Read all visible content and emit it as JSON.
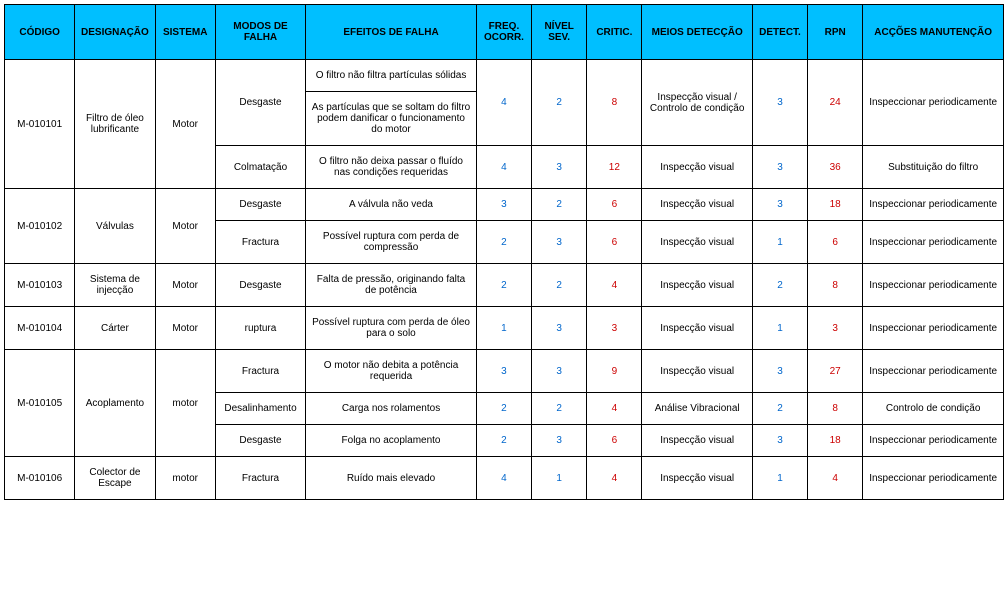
{
  "header_bg": "#00bfff",
  "columns": [
    "CÓDIGO",
    "DESIGNAÇÃO",
    "SISTEMA",
    "MODOS DE FALHA",
    "EFEITOS DE FALHA",
    "FREQ. OCORR.",
    "NÍVEL SEV.",
    "CRITIC.",
    "MEIOS DETECÇÃO",
    "DETECT.",
    "RPN",
    "ACÇÕES MANUTENÇÃO"
  ],
  "rows": [
    {
      "codigo": "M-010101",
      "desig": "Filtro de óleo lubrificante",
      "sist": "Motor",
      "modo": "Desgaste",
      "efeito": "O filtro não filtra partículas sólidas",
      "freq": "4",
      "nivel": "2",
      "critic": "8",
      "meios": "Inspecção visual / Controlo de condição",
      "detect": "3",
      "rpn": "24",
      "accao": "Inspeccionar periodicamente",
      "rs_codigo": 3,
      "rs_desig": 3,
      "rs_sist": 3,
      "rs_modo": 2,
      "rs_freq": 2,
      "rs_nivel": 2,
      "rs_critic": 2,
      "rs_meios": 2,
      "rs_detect": 2,
      "rs_rpn": 2,
      "rs_accao": 2
    },
    {
      "efeito": "As partículas que se soltam do filtro podem danificar o funcionamento do motor"
    },
    {
      "modo": "Colmatação",
      "efeito": "O filtro não deixa passar o fluído nas condições requeridas",
      "freq": "4",
      "nivel": "3",
      "critic": "12",
      "meios": "Inspecção visual",
      "detect": "3",
      "rpn": "36",
      "accao": "Substituição do filtro"
    },
    {
      "codigo": "M-010102",
      "desig": "Válvulas",
      "sist": "Motor",
      "modo": "Desgaste",
      "efeito": "A válvula não veda",
      "freq": "3",
      "nivel": "2",
      "critic": "6",
      "meios": "Inspecção visual",
      "detect": "3",
      "rpn": "18",
      "accao": "Inspeccionar periodicamente",
      "rs_codigo": 2,
      "rs_desig": 2,
      "rs_sist": 2
    },
    {
      "modo": "Fractura",
      "efeito": "Possível ruptura com perda de compressão",
      "freq": "2",
      "nivel": "3",
      "critic": "6",
      "meios": "Inspecção visual",
      "detect": "1",
      "rpn": "6",
      "accao": "Inspeccionar periodicamente"
    },
    {
      "codigo": "M-010103",
      "desig": "Sistema de injecção",
      "sist": "Motor",
      "modo": "Desgaste",
      "efeito": "Falta de pressão, originando falta de potência",
      "freq": "2",
      "nivel": "2",
      "critic": "4",
      "meios": "Inspecção visual",
      "detect": "2",
      "rpn": "8",
      "accao": "Inspeccionar periodicamente"
    },
    {
      "codigo": "M-010104",
      "desig": "Cárter",
      "sist": "Motor",
      "modo": "ruptura",
      "efeito": "Possível ruptura com perda de óleo para o solo",
      "freq": "1",
      "nivel": "3",
      "critic": "3",
      "meios": "Inspecção visual",
      "detect": "1",
      "rpn": "3",
      "accao": "Inspeccionar periodicamente"
    },
    {
      "codigo": "M-010105",
      "desig": "Acoplamento",
      "sist": "motor",
      "modo": "Fractura",
      "efeito": "O motor não debita a potência requerida",
      "freq": "3",
      "nivel": "3",
      "critic": "9",
      "meios": "Inspecção visual",
      "detect": "3",
      "rpn": "27",
      "accao": "Inspeccionar periodicamente",
      "rs_codigo": 3,
      "rs_desig": 3,
      "rs_sist": 3
    },
    {
      "modo": "Desalinhamento",
      "efeito": "Carga nos rolamentos",
      "freq": "2",
      "nivel": "2",
      "critic": "4",
      "meios": "Análise Vibracional",
      "detect": "2",
      "rpn": "8",
      "accao": "Controlo de condição"
    },
    {
      "modo": "Desgaste",
      "efeito": "Folga no acoplamento",
      "freq": "2",
      "nivel": "3",
      "critic": "6",
      "meios": "Inspecção visual",
      "detect": "3",
      "rpn": "18",
      "accao": "Inspeccionar periodicamente"
    },
    {
      "codigo": "M-010106",
      "desig": "Colector de Escape",
      "sist": "motor",
      "modo": "Fractura",
      "efeito": "Ruído mais elevado",
      "freq": "4",
      "nivel": "1",
      "critic": "4",
      "meios": "Inspecção visual",
      "detect": "1",
      "rpn": "4",
      "accao": "Inspeccionar periodicamente"
    }
  ],
  "colors": {
    "blue": "#0066cc",
    "red": "#cc0000"
  }
}
